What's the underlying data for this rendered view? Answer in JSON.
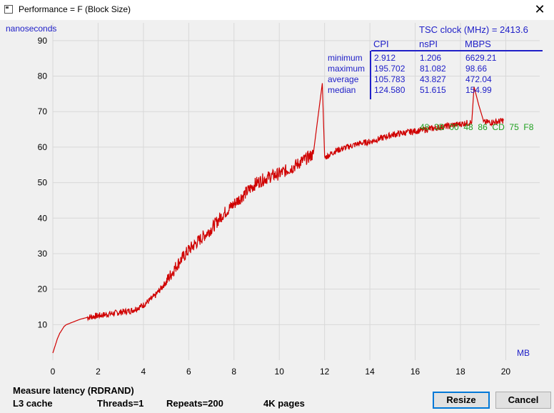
{
  "window": {
    "title": "Performance = F (Block Size)",
    "close_glyph": "✕",
    "icon": "app-window-icon"
  },
  "chart_data": {
    "type": "line",
    "title": "",
    "xlabel": "MB",
    "ylabel": "nanoseconds",
    "xlim": [
      0,
      21.5
    ],
    "ylim": [
      0,
      95
    ],
    "x_ticks": [
      0,
      2,
      4,
      6,
      8,
      10,
      12,
      14,
      16,
      18,
      20
    ],
    "y_ticks": [
      10,
      20,
      30,
      40,
      50,
      60,
      70,
      80,
      90
    ],
    "grid": true,
    "line_color": "#d00000",
    "series": [
      {
        "x": [
          0.0,
          0.1,
          0.2,
          0.3,
          0.4,
          0.5,
          0.6,
          0.8,
          1.0,
          1.2,
          1.5,
          2.0,
          2.5,
          3.0,
          3.5,
          4.0,
          4.5,
          5.0,
          5.5,
          6.0,
          6.5,
          7.0,
          7.5,
          8.0,
          8.5,
          9.0,
          9.5,
          10.0,
          10.5,
          11.0,
          11.5,
          11.9,
          12.0,
          12.5,
          13.0,
          13.5,
          14.0,
          14.5,
          15.0,
          15.5,
          16.0,
          16.5,
          17.0,
          17.5,
          18.0,
          18.5,
          18.6,
          19.0,
          19.5,
          19.9
        ],
        "y": [
          2,
          4,
          6,
          7.5,
          8.5,
          9.5,
          10,
          10.5,
          11,
          11.5,
          12,
          12.5,
          13,
          13.5,
          14,
          15.5,
          18,
          22,
          27,
          31,
          34,
          37,
          41,
          44,
          47,
          50,
          51.5,
          52.5,
          54,
          56,
          58,
          78,
          57,
          59,
          60,
          61,
          61.5,
          62.5,
          63.5,
          64,
          64.5,
          65,
          65.5,
          66,
          66.5,
          67,
          77,
          67,
          67,
          67.5
        ]
      }
    ],
    "annotation_hex": "48  3B  00  48  86  CD  75  F8",
    "annotation_color": "#1ea01e"
  },
  "stats": {
    "tsc_label": "TSC clock (MHz)  = 2413.6",
    "headers": [
      "CPI",
      "nsPI",
      "MBPS"
    ],
    "rows": [
      {
        "label": "minimum",
        "cpi": "2.912",
        "nspi": "1.206",
        "mbps": "6629.21"
      },
      {
        "label": "maximum",
        "cpi": "195.702",
        "nspi": "81.082",
        "mbps": "98.66"
      },
      {
        "label": "average",
        "cpi": "105.783",
        "nspi": "43.827",
        "mbps": "472.04"
      },
      {
        "label": "median",
        "cpi": "124.580",
        "nspi": "51.615",
        "mbps": "154.99"
      }
    ],
    "text_color": "#2020c8"
  },
  "footer": {
    "measure": "Measure latency (RDRAND)",
    "cache": "L3 cache",
    "threads": "Threads=1",
    "repeats": "Repeats=200",
    "pages": "4K pages",
    "resize_label": "Resize",
    "cancel_label": "Cancel"
  }
}
